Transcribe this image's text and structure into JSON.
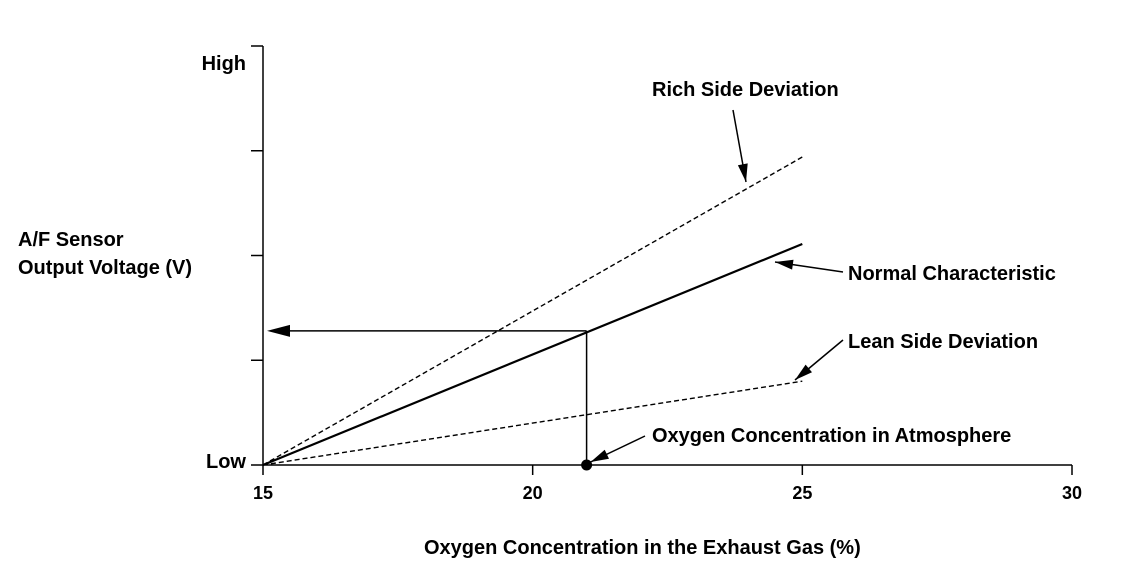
{
  "chart_data": {
    "type": "line",
    "title": "",
    "xlabel": "Oxygen Concentration in the Exhaust Gas (%)",
    "ylabel_lines": [
      "A/F Sensor",
      "Output Voltage (V)"
    ],
    "xlim": [
      15,
      30
    ],
    "ylim": [
      0,
      4
    ],
    "x_ticks": [
      15,
      20,
      25,
      30
    ],
    "x_tick_labels": [
      "15",
      "20",
      "25",
      "30"
    ],
    "y_ticks": [
      0,
      1,
      2,
      3,
      4
    ],
    "y_tick_labels": [
      {
        "value": 0,
        "label": "Low"
      },
      {
        "value": 4,
        "label": "High"
      }
    ],
    "grid": false,
    "series": [
      {
        "name": "Rich Side Deviation",
        "style": "dashed",
        "x": [
          15,
          25
        ],
        "y": [
          0,
          2.94
        ]
      },
      {
        "name": "Normal Characteristic",
        "style": "solid",
        "x": [
          15,
          25
        ],
        "y": [
          0,
          2.11
        ]
      },
      {
        "name": "Lean Side Deviation",
        "style": "dashed",
        "x": [
          15,
          25
        ],
        "y": [
          0,
          0.8
        ]
      }
    ],
    "reference": {
      "name": "Oxygen Concentration in Atmosphere",
      "x": 21,
      "y": 1.28
    },
    "annotations": [
      {
        "text": "Rich Side Deviation",
        "target": "Rich Side Deviation"
      },
      {
        "text": "Normal Characteristic",
        "target": "Normal Characteristic"
      },
      {
        "text": "Lean Side Deviation",
        "target": "Lean Side Deviation"
      },
      {
        "text": "Oxygen Concentration in Atmosphere",
        "target": "reference"
      }
    ]
  },
  "colors": {
    "line": "#000000",
    "background": "#ffffff"
  }
}
